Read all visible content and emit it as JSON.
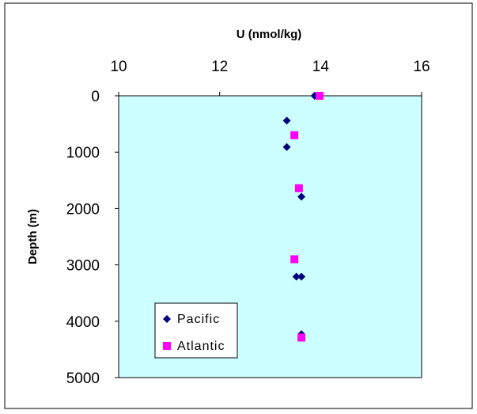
{
  "chart_data": {
    "type": "scatter",
    "xlabel": "U (nmol/kg)",
    "ylabel": "Depth (m)",
    "xlim": [
      10,
      16
    ],
    "ylim": [
      0,
      5000
    ],
    "y_inverted": true,
    "x_axis_position": "top",
    "x_ticks": [
      "10",
      "12",
      "14",
      "16"
    ],
    "y_ticks": [
      "0",
      "1000",
      "2000",
      "3000",
      "4000",
      "5000"
    ],
    "grid": false,
    "plot_background": "#ccffff",
    "legend_position": "bottom-left",
    "series": [
      {
        "name": "Pacific",
        "marker": "diamond",
        "color": "#000080",
        "points": [
          {
            "x": 13.88,
            "y": 0
          },
          {
            "x": 13.33,
            "y": 440
          },
          {
            "x": 13.33,
            "y": 910
          },
          {
            "x": 13.62,
            "y": 1790
          },
          {
            "x": 13.52,
            "y": 3210
          },
          {
            "x": 13.62,
            "y": 3210
          },
          {
            "x": 13.62,
            "y": 4230
          }
        ]
      },
      {
        "name": "Atlantic",
        "marker": "square",
        "color": "#ff00ff",
        "points": [
          {
            "x": 13.98,
            "y": 0
          },
          {
            "x": 13.48,
            "y": 700
          },
          {
            "x": 13.57,
            "y": 1640
          },
          {
            "x": 13.48,
            "y": 2900
          },
          {
            "x": 13.62,
            "y": 4290
          }
        ]
      }
    ]
  }
}
